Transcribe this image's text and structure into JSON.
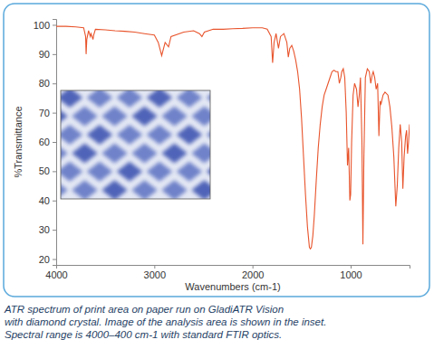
{
  "chart_data": {
    "type": "line",
    "color": "#e8542c",
    "x_label": "Wavenumbers (cm-1)",
    "y_label": "%Transmittance",
    "caption": [
      "ATR spectrum of print area on paper run on GladiATR Vision",
      "with diamond crystal. Image of the analysis area is shown in the inset.",
      "Spectral range is 4000–400 cm-1 with standard FTIR optics."
    ],
    "xlim": [
      4000,
      400
    ],
    "xticks": [
      4000,
      3000,
      2000,
      1000
    ],
    "ylim": [
      18,
      102
    ],
    "yticks": [
      20,
      30,
      40,
      50,
      60,
      70,
      80,
      90,
      100
    ],
    "grid": false,
    "x": [
      4000,
      3900,
      3800,
      3720,
      3700,
      3695,
      3688,
      3670,
      3652,
      3645,
      3625,
      3618,
      3600,
      3500,
      3400,
      3300,
      3200,
      3100,
      3000,
      2960,
      2925,
      2890,
      2855,
      2830,
      2700,
      2600,
      2540,
      2515,
      2490,
      2400,
      2300,
      2200,
      2100,
      2000,
      1900,
      1850,
      1810,
      1795,
      1780,
      1760,
      1735,
      1715,
      1680,
      1650,
      1635,
      1620,
      1600,
      1580,
      1560,
      1540,
      1520,
      1500,
      1480,
      1460,
      1440,
      1420,
      1410,
      1400,
      1385,
      1370,
      1350,
      1330,
      1310,
      1290,
      1270,
      1250,
      1230,
      1210,
      1190,
      1170,
      1150,
      1130,
      1115,
      1100,
      1090,
      1075,
      1060,
      1045,
      1032,
      1020,
      1008,
      1000,
      990,
      975,
      960,
      940,
      925,
      912,
      900,
      885,
      875,
      865,
      850,
      830,
      810,
      795,
      780,
      770,
      755,
      740,
      725,
      712,
      700,
      690,
      670,
      650,
      620,
      600,
      580,
      560,
      540,
      525,
      510,
      495,
      480,
      468,
      455,
      440,
      430,
      420,
      410,
      400
    ],
    "values": [
      99.5,
      99.5,
      99.3,
      99,
      96,
      90,
      95,
      98,
      96,
      97,
      95,
      96.5,
      98.5,
      98.3,
      98,
      97.8,
      97.5,
      97,
      96.5,
      94,
      89.5,
      94,
      92.5,
      96,
      97.5,
      98,
      97,
      96,
      97.5,
      98.5,
      98.5,
      98.7,
      98.8,
      99,
      99,
      98.5,
      96,
      87,
      94,
      97,
      92,
      96,
      97,
      94,
      89,
      92,
      93,
      91,
      88,
      84,
      78,
      68,
      55,
      42,
      31,
      24,
      23.5,
      24,
      28,
      35,
      47,
      58,
      66,
      72,
      76,
      78,
      80,
      82,
      84,
      84.5,
      84,
      84,
      80,
      82,
      84,
      85,
      82,
      70,
      52,
      58,
      40,
      42,
      60,
      76,
      80,
      78,
      72,
      76,
      82,
      60,
      25,
      55,
      82,
      85,
      84,
      80,
      83,
      84,
      82,
      78,
      80,
      62,
      74,
      73,
      76,
      77,
      76,
      72,
      65,
      55,
      38,
      45,
      58,
      66,
      60,
      44,
      55,
      62,
      64,
      56,
      60,
      66
    ]
  }
}
